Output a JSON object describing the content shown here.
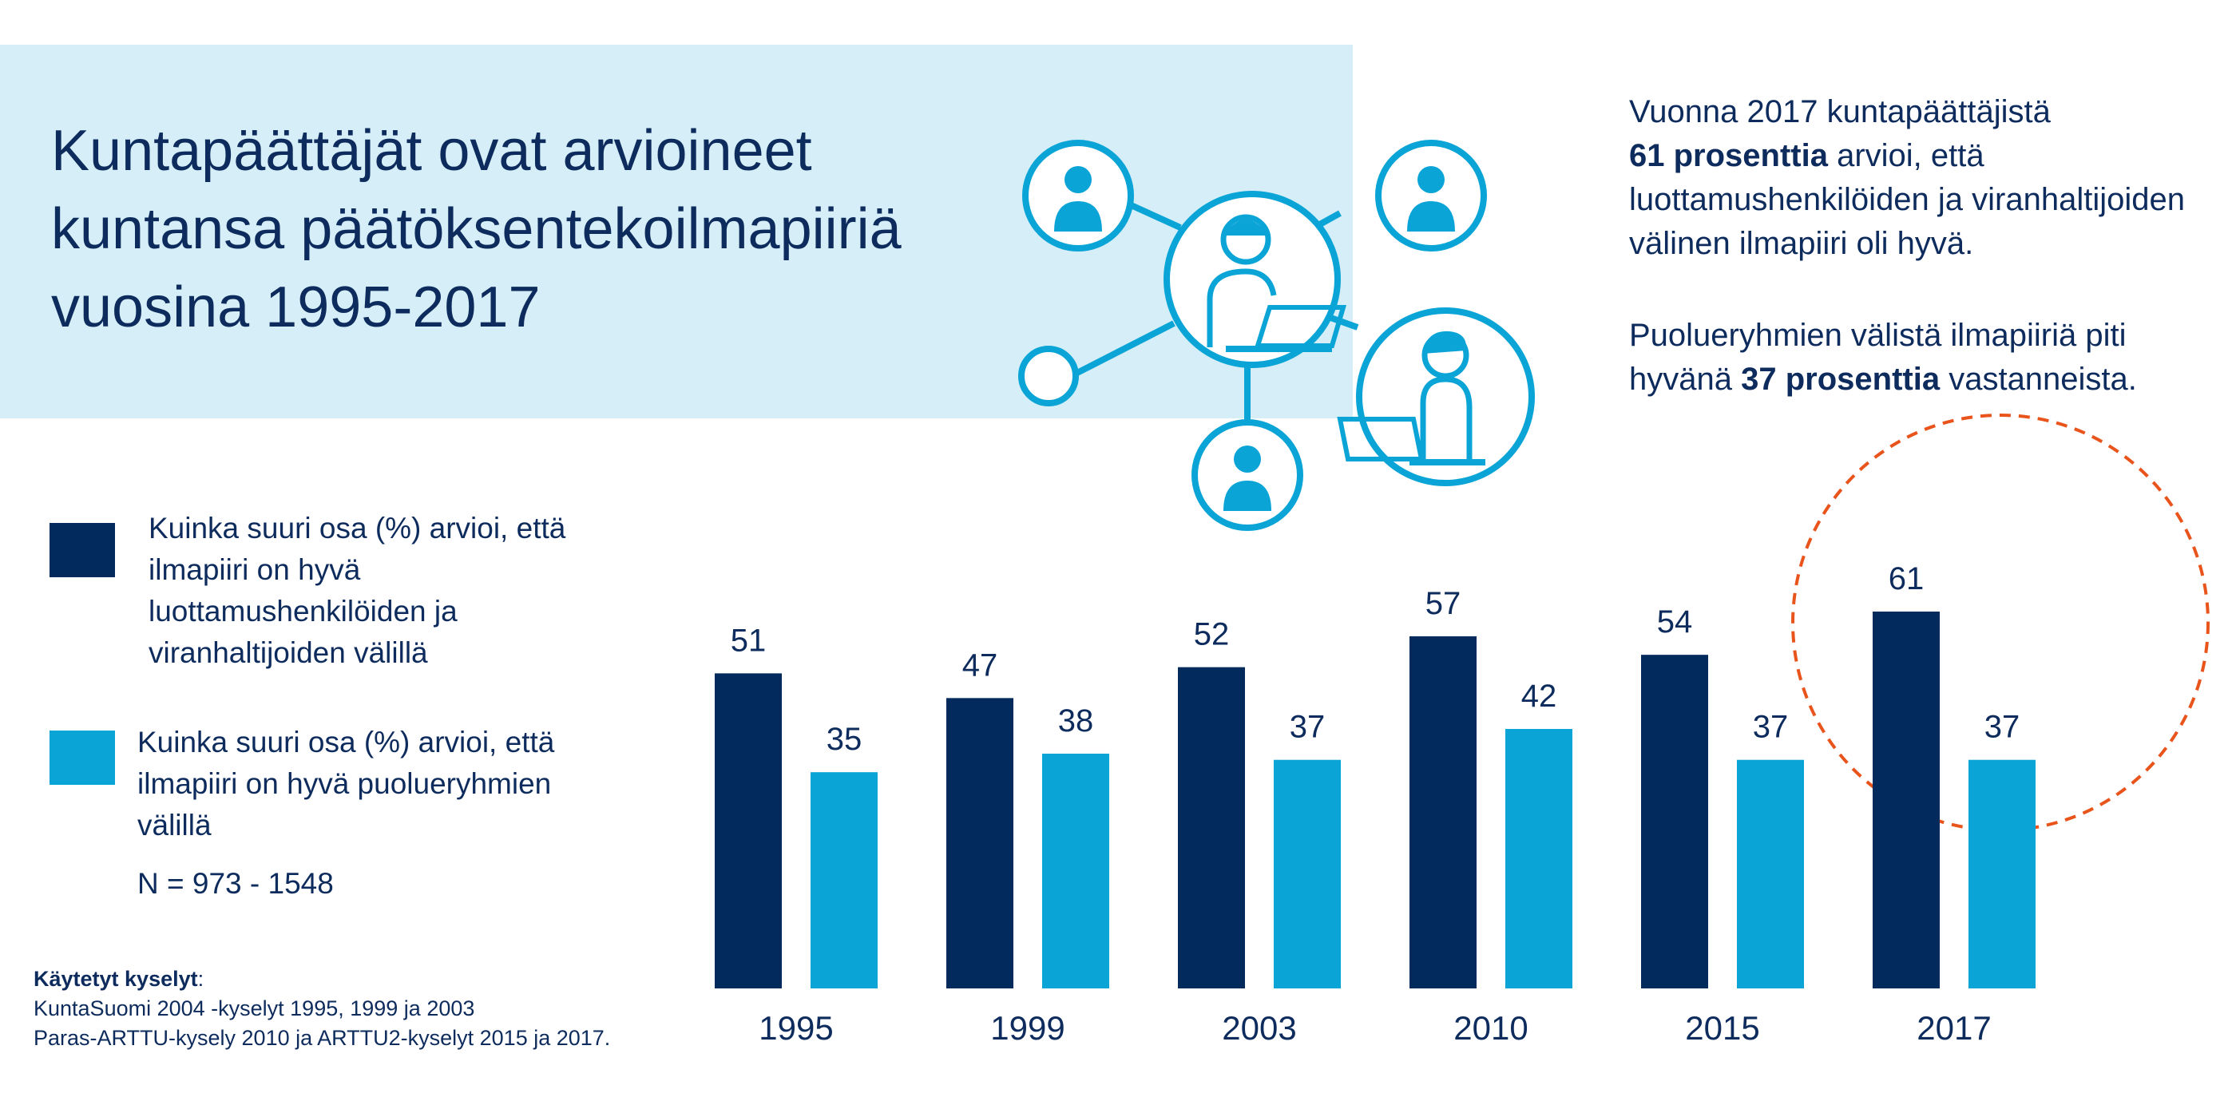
{
  "title": "Kuntapäättäjät ovat arvioineet kuntansa päätöksentekoilmapiiriä vuosina 1995-2017",
  "info1": {
    "pre": "Vuonna 2017 kuntapäättäjistä",
    "bold": "61 prosenttia",
    "post": "arvioi, että luottamushenkilöiden ja viranhaltijoiden välinen ilmapiiri oli hyvä."
  },
  "info2": {
    "pre": "Puolueryhmien välistä ilmapiiriä piti hyvänä",
    "bold": "37 prosenttia",
    "post": "vastanneista."
  },
  "legend": {
    "dark": "Kuinka suuri osa (%) arvioi, että ilmapiiri on hyvä luottamushenkilöiden ja viranhaltijoiden välillä",
    "light": "Kuinka suuri osa (%) arvioi, että ilmapiiri on hyvä puolueryhmien välillä"
  },
  "sample_size": "N = 973 - 1548",
  "sources": {
    "heading": "Käytetyt kyselyt",
    "heading_suffix": ":",
    "line1": "KuntaSuomi 2004 -kyselyt 1995, 1999 ja 2003",
    "line2": "Paras-ARTTU-kysely 2010 ja ARTTU2-kyselyt 2015 ja 2017."
  },
  "icons": [
    "person-icon",
    "person-laptop-icon",
    "network-node-icon"
  ],
  "colors": {
    "dark": "#032a5d",
    "light": "#0aa4d7",
    "highlight_circle": "#e8541b",
    "band": "#d5eef7",
    "text": "#0d2b5c"
  },
  "chart_data": {
    "type": "bar",
    "categories": [
      "1995",
      "1999",
      "2003",
      "2010",
      "2015",
      "2017"
    ],
    "series": [
      {
        "values": [
          51,
          47,
          52,
          57,
          54,
          61
        ]
      },
      {
        "values": [
          35,
          38,
          37,
          42,
          37,
          37
        ]
      }
    ],
    "ylim": [
      0,
      61
    ],
    "grid": false,
    "highlight": "2017"
  }
}
